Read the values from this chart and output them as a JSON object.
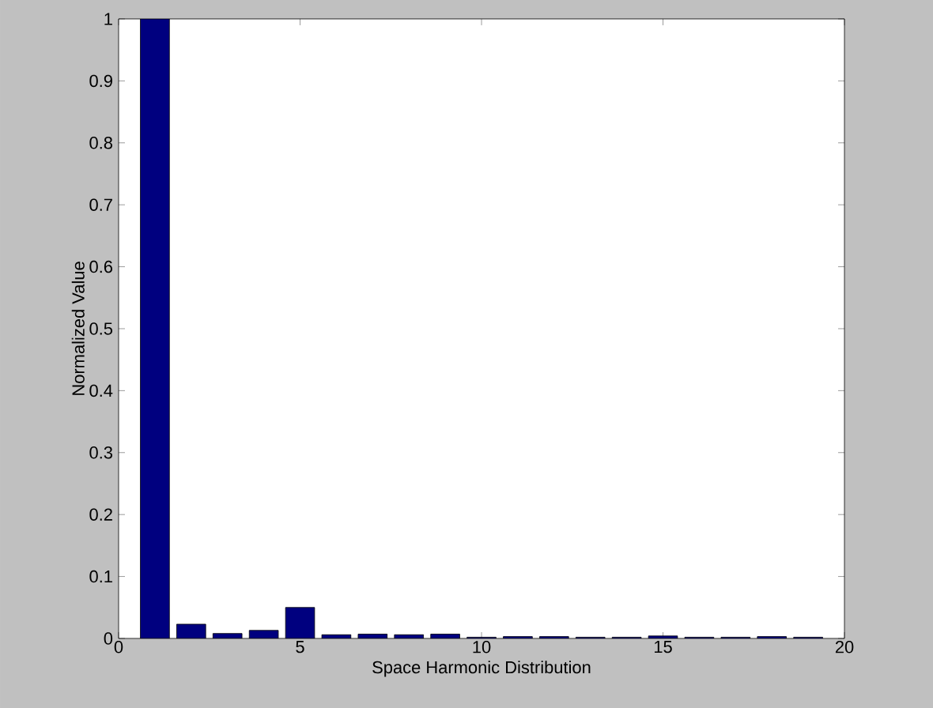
{
  "chart_data": {
    "type": "bar",
    "xlabel": "Space Harmonic Distribution",
    "ylabel": "Normalized Value",
    "x": [
      1,
      2,
      3,
      4,
      5,
      6,
      7,
      8,
      9,
      10,
      11,
      12,
      13,
      14,
      15,
      16,
      17,
      18,
      19
    ],
    "values": [
      1,
      0.023,
      0.008,
      0.013,
      0.05,
      0.006,
      0.007,
      0.006,
      0.007,
      0.002,
      0.003,
      0.003,
      0.002,
      0.002,
      0.004,
      0.002,
      0.002,
      0.003,
      0.002
    ],
    "color": "#00007f",
    "xlim": [
      0,
      20
    ],
    "xticks": [
      0,
      5,
      10,
      15,
      20
    ],
    "ylim": [
      0,
      1
    ],
    "yticks": [
      0,
      0.1,
      0.2,
      0.3,
      0.4,
      0.5,
      0.6,
      0.7,
      0.8,
      0.9,
      1
    ],
    "grid": false
  }
}
